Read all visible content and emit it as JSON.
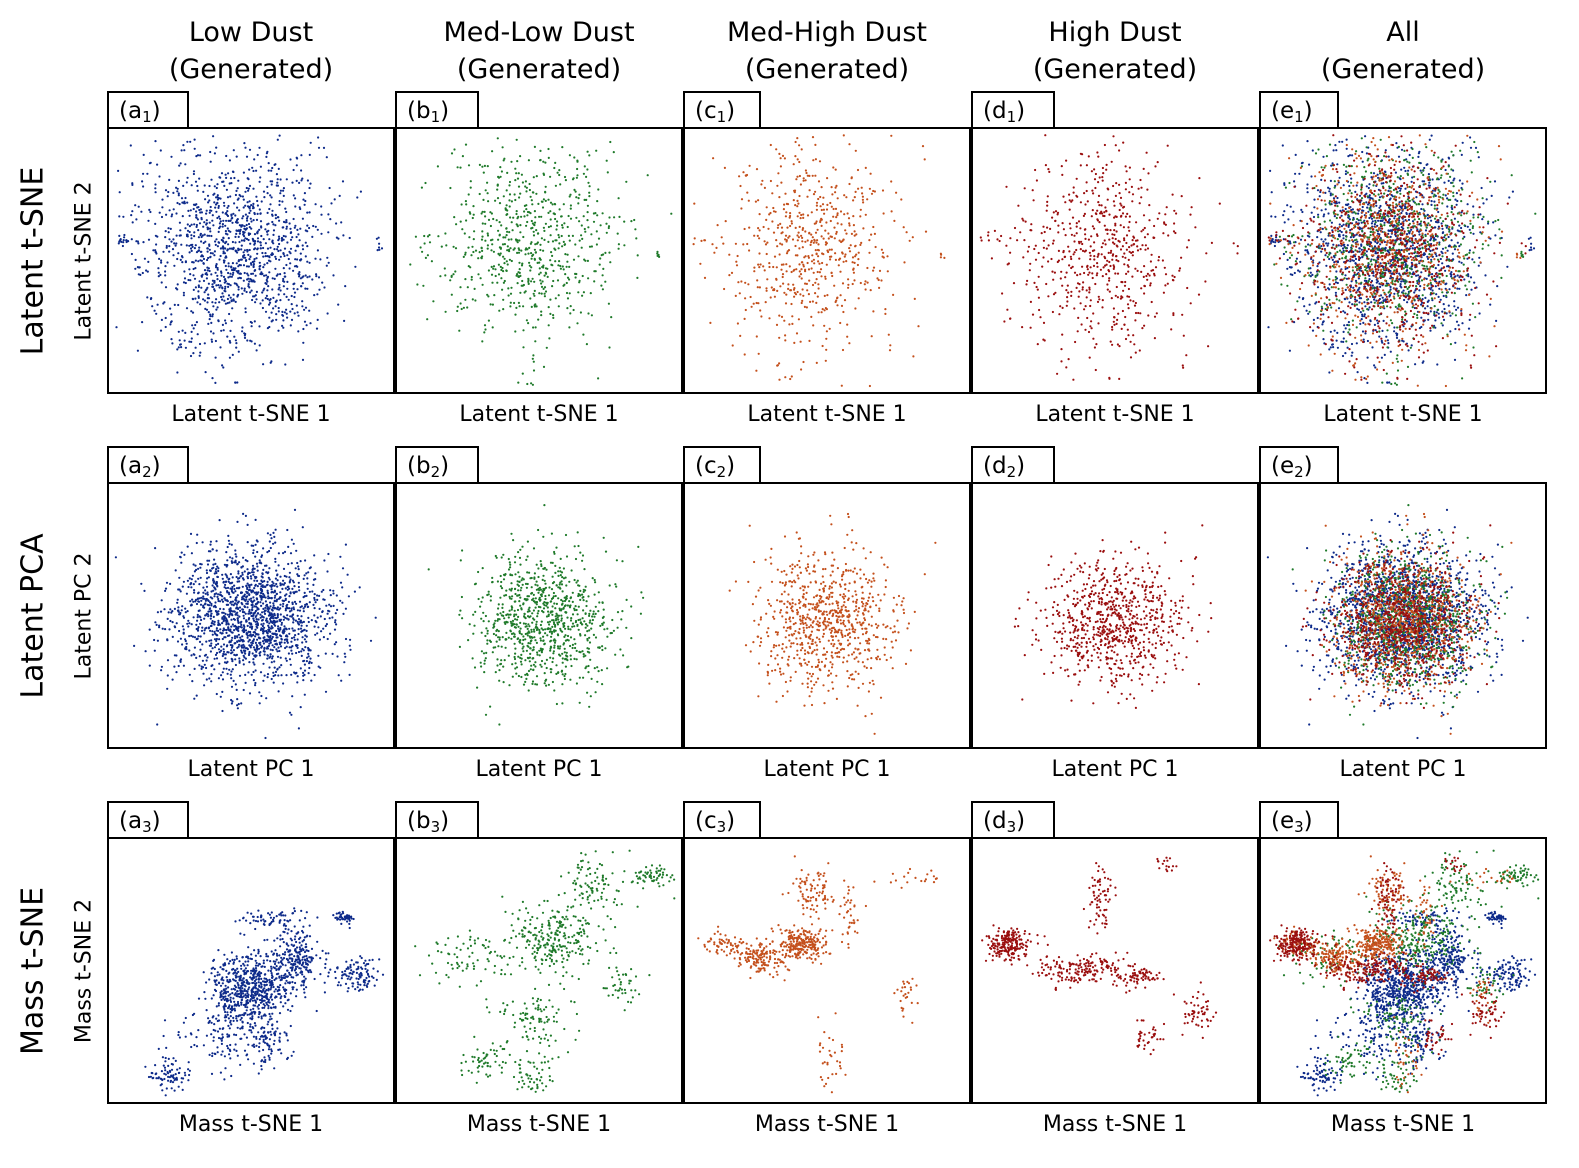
{
  "columns": [
    {
      "line1": "Low Dust",
      "line2": "(Generated)"
    },
    {
      "line1": "Med-Low Dust",
      "line2": "(Generated)"
    },
    {
      "line1": "Med-High Dust",
      "line2": "(Generated)"
    },
    {
      "line1": "High Dust",
      "line2": "(Generated)"
    },
    {
      "line1": "All",
      "line2": "(Generated)"
    }
  ],
  "rows": [
    {
      "title": "Latent t-SNE",
      "ylabel": "Latent t-SNE 2",
      "xlabel": "Latent t-SNE 1"
    },
    {
      "title": "Latent PCA",
      "ylabel": "Latent PC 2",
      "xlabel": "Latent PC 1"
    },
    {
      "title": "Mass t-SNE",
      "ylabel": "Mass t-SNE 2",
      "xlabel": "Mass t-SNE 1"
    }
  ],
  "panel_tags": [
    [
      {
        "letter": "(a",
        "sub": "1",
        "close": ")"
      },
      {
        "letter": "(b",
        "sub": "1",
        "close": ")"
      },
      {
        "letter": "(c",
        "sub": "1",
        "close": ")"
      },
      {
        "letter": "(d",
        "sub": "1",
        "close": ")"
      },
      {
        "letter": "(e",
        "sub": "1",
        "close": ")"
      }
    ],
    [
      {
        "letter": "(a",
        "sub": "2",
        "close": ")"
      },
      {
        "letter": "(b",
        "sub": "2",
        "close": ")"
      },
      {
        "letter": "(c",
        "sub": "2",
        "close": ")"
      },
      {
        "letter": "(d",
        "sub": "2",
        "close": ")"
      },
      {
        "letter": "(e",
        "sub": "2",
        "close": ")"
      }
    ],
    [
      {
        "letter": "(a",
        "sub": "3",
        "close": ")"
      },
      {
        "letter": "(b",
        "sub": "3",
        "close": ")"
      },
      {
        "letter": "(c",
        "sub": "3",
        "close": ")"
      },
      {
        "letter": "(d",
        "sub": "3",
        "close": ")"
      },
      {
        "letter": "(e",
        "sub": "3",
        "close": ")"
      }
    ]
  ],
  "colors": {
    "low_dust": "#0d2a8a",
    "med_low_dust": "#1f7a2a",
    "med_high_dust": "#c4501c",
    "high_dust": "#9a0e0e",
    "frame": "#000000"
  },
  "chart_data": {
    "type": "scatter",
    "grid": false,
    "ticks": false,
    "series_colors": [
      "#0d2a8a",
      "#1f7a2a",
      "#c4501c",
      "#9a0e0e"
    ],
    "panels_layout": "3 rows x 5 columns; column 5 overlays all four dust series",
    "approx_point_counts": [
      1500,
      800,
      700,
      700
    ],
    "clusters": {
      "latent_tsne": [
        [
          {
            "cx": 0.44,
            "cy": 0.45,
            "sx": 0.16,
            "sy": 0.19,
            "w": 1.0
          },
          {
            "cx": 0.05,
            "cy": 0.42,
            "sx": 0.015,
            "sy": 0.01,
            "w": 0.01
          },
          {
            "cx": 0.95,
            "cy": 0.45,
            "sx": 0.006,
            "sy": 0.015,
            "w": 0.004
          },
          {
            "cx": 0.15,
            "cy": 0.15,
            "sx": 0.01,
            "sy": 0.005,
            "w": 0.003
          },
          {
            "cx": 0.25,
            "cy": 0.82,
            "sx": 0.02,
            "sy": 0.01,
            "w": 0.004
          },
          {
            "cx": 0.45,
            "cy": 0.96,
            "sx": 0.005,
            "sy": 0.005,
            "w": 0.002
          }
        ],
        [
          {
            "cx": 0.47,
            "cy": 0.43,
            "sx": 0.15,
            "sy": 0.19,
            "w": 1.0
          },
          {
            "cx": 0.08,
            "cy": 0.42,
            "sx": 0.02,
            "sy": 0.01,
            "w": 0.01
          },
          {
            "cx": 0.92,
            "cy": 0.48,
            "sx": 0.005,
            "sy": 0.01,
            "w": 0.004
          },
          {
            "cx": 0.14,
            "cy": 0.15,
            "sx": 0.005,
            "sy": 0.005,
            "w": 0.003
          },
          {
            "cx": 0.47,
            "cy": 0.97,
            "sx": 0.01,
            "sy": 0.004,
            "w": 0.003
          }
        ],
        [
          {
            "cx": 0.43,
            "cy": 0.46,
            "sx": 0.15,
            "sy": 0.19,
            "w": 1.0
          },
          {
            "cx": 0.08,
            "cy": 0.43,
            "sx": 0.02,
            "sy": 0.01,
            "w": 0.01
          },
          {
            "cx": 0.91,
            "cy": 0.48,
            "sx": 0.01,
            "sy": 0.01,
            "w": 0.006
          },
          {
            "cx": 0.23,
            "cy": 0.82,
            "sx": 0.02,
            "sy": 0.01,
            "w": 0.004
          }
        ],
        [
          {
            "cx": 0.45,
            "cy": 0.47,
            "sx": 0.15,
            "sy": 0.18,
            "w": 1.0
          },
          {
            "cx": 0.07,
            "cy": 0.42,
            "sx": 0.025,
            "sy": 0.01,
            "w": 0.01
          },
          {
            "cx": 0.93,
            "cy": 0.45,
            "sx": 0.008,
            "sy": 0.01,
            "w": 0.005
          },
          {
            "cx": 0.48,
            "cy": 0.95,
            "sx": 0.005,
            "sy": 0.005,
            "w": 0.002
          }
        ]
      ],
      "latent_pca": [
        [
          {
            "cx": 0.5,
            "cy": 0.5,
            "sx": 0.14,
            "sy": 0.13,
            "w": 1.0
          }
        ],
        [
          {
            "cx": 0.51,
            "cy": 0.52,
            "sx": 0.12,
            "sy": 0.13,
            "w": 1.0
          }
        ],
        [
          {
            "cx": 0.5,
            "cy": 0.52,
            "sx": 0.12,
            "sy": 0.13,
            "w": 1.0
          }
        ],
        [
          {
            "cx": 0.5,
            "cy": 0.52,
            "sx": 0.12,
            "sy": 0.12,
            "w": 1.0
          }
        ]
      ],
      "mass_tsne": [
        [
          {
            "cx": 0.5,
            "cy": 0.57,
            "sx": 0.07,
            "sy": 0.07,
            "w": 0.45
          },
          {
            "cx": 0.66,
            "cy": 0.46,
            "sx": 0.04,
            "sy": 0.06,
            "w": 0.15
          },
          {
            "cx": 0.88,
            "cy": 0.52,
            "sx": 0.04,
            "sy": 0.03,
            "w": 0.08
          },
          {
            "cx": 0.83,
            "cy": 0.3,
            "sx": 0.02,
            "sy": 0.01,
            "w": 0.03
          },
          {
            "cx": 0.55,
            "cy": 0.78,
            "sx": 0.04,
            "sy": 0.04,
            "w": 0.06
          },
          {
            "cx": 0.22,
            "cy": 0.9,
            "sx": 0.04,
            "sy": 0.03,
            "w": 0.07
          },
          {
            "cx": 0.38,
            "cy": 0.75,
            "sx": 0.08,
            "sy": 0.06,
            "w": 0.06
          },
          {
            "cx": 0.57,
            "cy": 0.3,
            "sx": 0.06,
            "sy": 0.02,
            "w": 0.04
          }
        ],
        [
          {
            "cx": 0.55,
            "cy": 0.38,
            "sx": 0.08,
            "sy": 0.06,
            "w": 0.3
          },
          {
            "cx": 0.9,
            "cy": 0.14,
            "sx": 0.04,
            "sy": 0.02,
            "w": 0.08
          },
          {
            "cx": 0.68,
            "cy": 0.18,
            "sx": 0.06,
            "sy": 0.06,
            "w": 0.12
          },
          {
            "cx": 0.48,
            "cy": 0.68,
            "sx": 0.06,
            "sy": 0.06,
            "w": 0.12
          },
          {
            "cx": 0.48,
            "cy": 0.9,
            "sx": 0.03,
            "sy": 0.04,
            "w": 0.08
          },
          {
            "cx": 0.25,
            "cy": 0.45,
            "sx": 0.08,
            "sy": 0.05,
            "w": 0.08
          },
          {
            "cx": 0.3,
            "cy": 0.85,
            "sx": 0.04,
            "sy": 0.04,
            "w": 0.05
          },
          {
            "cx": 0.8,
            "cy": 0.55,
            "sx": 0.04,
            "sy": 0.05,
            "w": 0.05
          }
        ],
        [
          {
            "cx": 0.41,
            "cy": 0.4,
            "sx": 0.05,
            "sy": 0.03,
            "w": 0.28
          },
          {
            "cx": 0.27,
            "cy": 0.45,
            "sx": 0.04,
            "sy": 0.03,
            "w": 0.18
          },
          {
            "cx": 0.13,
            "cy": 0.4,
            "sx": 0.04,
            "sy": 0.02,
            "w": 0.08
          },
          {
            "cx": 0.45,
            "cy": 0.2,
            "sx": 0.04,
            "sy": 0.05,
            "w": 0.1
          },
          {
            "cx": 0.58,
            "cy": 0.28,
            "sx": 0.02,
            "sy": 0.06,
            "w": 0.06
          },
          {
            "cx": 0.8,
            "cy": 0.15,
            "sx": 0.06,
            "sy": 0.02,
            "w": 0.03
          },
          {
            "cx": 0.5,
            "cy": 0.82,
            "sx": 0.03,
            "sy": 0.08,
            "w": 0.04
          },
          {
            "cx": 0.78,
            "cy": 0.58,
            "sx": 0.02,
            "sy": 0.04,
            "w": 0.03
          }
        ],
        [
          {
            "cx": 0.12,
            "cy": 0.4,
            "sx": 0.04,
            "sy": 0.03,
            "w": 0.25
          },
          {
            "cx": 0.38,
            "cy": 0.5,
            "sx": 0.08,
            "sy": 0.03,
            "w": 0.2
          },
          {
            "cx": 0.45,
            "cy": 0.22,
            "sx": 0.02,
            "sy": 0.06,
            "w": 0.1
          },
          {
            "cx": 0.58,
            "cy": 0.52,
            "sx": 0.04,
            "sy": 0.02,
            "w": 0.08
          },
          {
            "cx": 0.8,
            "cy": 0.66,
            "sx": 0.03,
            "sy": 0.04,
            "w": 0.06
          },
          {
            "cx": 0.62,
            "cy": 0.75,
            "sx": 0.03,
            "sy": 0.03,
            "w": 0.04
          },
          {
            "cx": 0.68,
            "cy": 0.1,
            "sx": 0.02,
            "sy": 0.02,
            "w": 0.02
          }
        ]
      ]
    }
  }
}
